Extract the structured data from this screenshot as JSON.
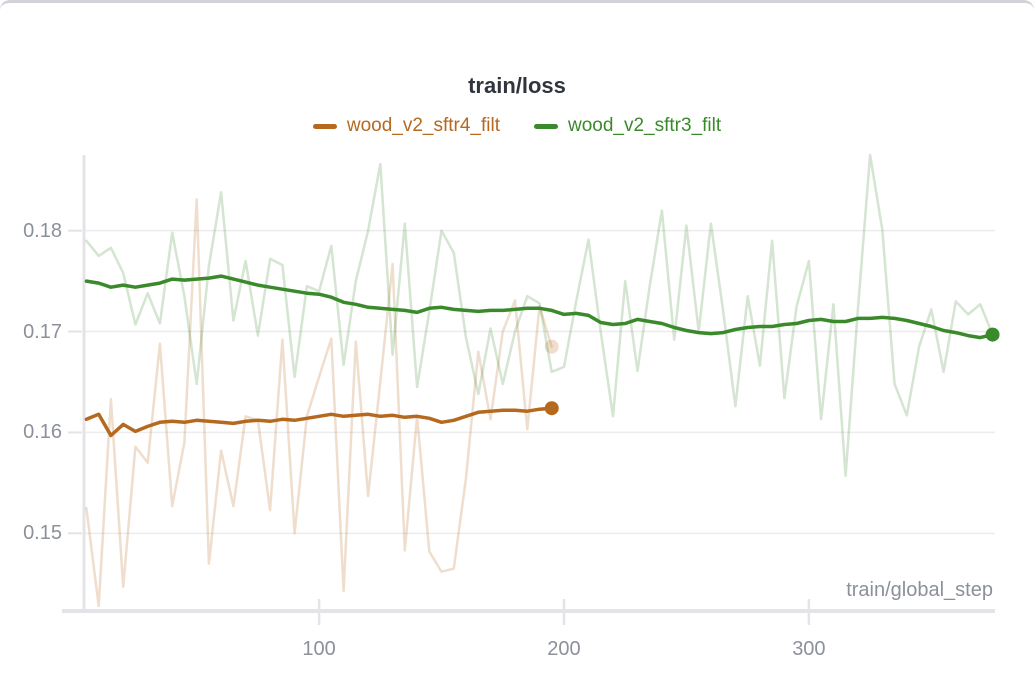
{
  "chart_data": {
    "type": "line",
    "title": "train/loss",
    "xlabel": "train/global_step",
    "ylabel": "",
    "xlim": [
      4,
      376
    ],
    "ylim": [
      0.1423,
      0.1875
    ],
    "grid": true,
    "legend_position": "top-center",
    "xticks": [
      {
        "v": 100,
        "label": "100"
      },
      {
        "v": 200,
        "label": "200"
      },
      {
        "v": 300,
        "label": "300"
      }
    ],
    "yticks": [
      {
        "v": 0.18,
        "label": "0.18"
      },
      {
        "v": 0.17,
        "label": "0.17"
      },
      {
        "v": 0.16,
        "label": "0.16"
      },
      {
        "v": 0.15,
        "label": "0.15"
      }
    ],
    "colors": {
      "grid": "#ececee",
      "axis": "#e4e4e8",
      "tick_text": "#8b909a",
      "title_text": "#30343c",
      "series_orange": "#b5691f",
      "series_green": "#3a8a2c",
      "raw_opacity": 0.22
    },
    "series": [
      {
        "name": "wood_v2_sftr4_filt",
        "color": "#b5691f",
        "x": [
          5,
          10,
          15,
          20,
          25,
          30,
          35,
          40,
          45,
          50,
          55,
          60,
          65,
          70,
          75,
          80,
          85,
          90,
          95,
          100,
          105,
          110,
          115,
          120,
          125,
          130,
          135,
          140,
          145,
          150,
          155,
          160,
          165,
          170,
          175,
          180,
          185,
          190,
          195
        ],
        "raw": [
          0.1525,
          0.1428,
          0.1633,
          0.1447,
          0.1586,
          0.157,
          0.1688,
          0.1527,
          0.159,
          0.1831,
          0.147,
          0.1582,
          0.1527,
          0.1616,
          0.1612,
          0.1523,
          0.1692,
          0.15,
          0.1616,
          0.1655,
          0.1693,
          0.1443,
          0.169,
          0.1537,
          0.165,
          0.1767,
          0.1483,
          0.1616,
          0.1482,
          0.1462,
          0.1465,
          0.1555,
          0.168,
          0.1613,
          0.17,
          0.1731,
          0.1603,
          0.1725,
          0.1685
        ],
        "smoothed": [
          0.1613,
          0.1618,
          0.1597,
          0.1608,
          0.1601,
          0.1606,
          0.161,
          0.1611,
          0.161,
          0.1612,
          0.1611,
          0.161,
          0.1609,
          0.1611,
          0.1612,
          0.1611,
          0.1613,
          0.1612,
          0.1614,
          0.1616,
          0.1618,
          0.1616,
          0.1617,
          0.1618,
          0.1616,
          0.1617,
          0.1615,
          0.1616,
          0.1614,
          0.161,
          0.1612,
          0.1616,
          0.162,
          0.1621,
          0.1622,
          0.1622,
          0.1621,
          0.1623,
          0.1624
        ],
        "end_value": 0.1624,
        "end_step": 195
      },
      {
        "name": "wood_v2_sftr3_filt",
        "color": "#3a8a2c",
        "x": [
          5,
          10,
          15,
          20,
          25,
          30,
          35,
          40,
          45,
          50,
          55,
          60,
          65,
          70,
          75,
          80,
          85,
          90,
          95,
          100,
          105,
          110,
          115,
          120,
          125,
          130,
          135,
          140,
          145,
          150,
          155,
          160,
          165,
          170,
          175,
          180,
          185,
          190,
          195,
          200,
          205,
          210,
          215,
          220,
          225,
          230,
          235,
          240,
          245,
          250,
          255,
          260,
          265,
          270,
          275,
          280,
          285,
          290,
          295,
          300,
          305,
          310,
          315,
          320,
          325,
          330,
          335,
          340,
          345,
          350,
          355,
          360,
          365,
          370,
          375
        ],
        "raw": [
          0.179,
          0.1775,
          0.1783,
          0.1758,
          0.1707,
          0.1738,
          0.1708,
          0.1798,
          0.1735,
          0.1648,
          0.1765,
          0.1838,
          0.1711,
          0.177,
          0.1696,
          0.1772,
          0.1766,
          0.1655,
          0.1745,
          0.174,
          0.1785,
          0.1667,
          0.175,
          0.18,
          0.1866,
          0.1677,
          0.1807,
          0.1645,
          0.172,
          0.18,
          0.1778,
          0.1694,
          0.1638,
          0.1703,
          0.1648,
          0.17,
          0.1735,
          0.1728,
          0.166,
          0.1665,
          0.173,
          0.1791,
          0.17,
          0.1616,
          0.175,
          0.1661,
          0.1745,
          0.182,
          0.1692,
          0.1805,
          0.17,
          0.1807,
          0.172,
          0.1626,
          0.1735,
          0.1666,
          0.179,
          0.1634,
          0.1725,
          0.177,
          0.1613,
          0.1727,
          0.1557,
          0.1722,
          0.1875,
          0.1801,
          0.1648,
          0.1617,
          0.1685,
          0.1722,
          0.166,
          0.173,
          0.1717,
          0.1727,
          0.1697
        ],
        "smoothed": [
          0.175,
          0.1748,
          0.1744,
          0.1746,
          0.1744,
          0.1746,
          0.1748,
          0.1752,
          0.1751,
          0.1752,
          0.1753,
          0.1755,
          0.1752,
          0.1749,
          0.1746,
          0.1744,
          0.1742,
          0.174,
          0.1738,
          0.1737,
          0.1734,
          0.1729,
          0.1727,
          0.1724,
          0.1723,
          0.1722,
          0.1721,
          0.1719,
          0.1723,
          0.1724,
          0.1722,
          0.1721,
          0.172,
          0.1721,
          0.1721,
          0.1722,
          0.1723,
          0.1723,
          0.1721,
          0.1717,
          0.1718,
          0.1716,
          0.1709,
          0.1707,
          0.1708,
          0.1712,
          0.171,
          0.1708,
          0.1704,
          0.1701,
          0.1699,
          0.1698,
          0.1699,
          0.1702,
          0.1704,
          0.1705,
          0.1705,
          0.1707,
          0.1708,
          0.1711,
          0.1712,
          0.171,
          0.171,
          0.1713,
          0.1713,
          0.1714,
          0.1713,
          0.1711,
          0.1708,
          0.1705,
          0.1701,
          0.1699,
          0.1696,
          0.1694,
          0.1697
        ],
        "end_value": 0.1697,
        "end_step": 375
      }
    ]
  }
}
